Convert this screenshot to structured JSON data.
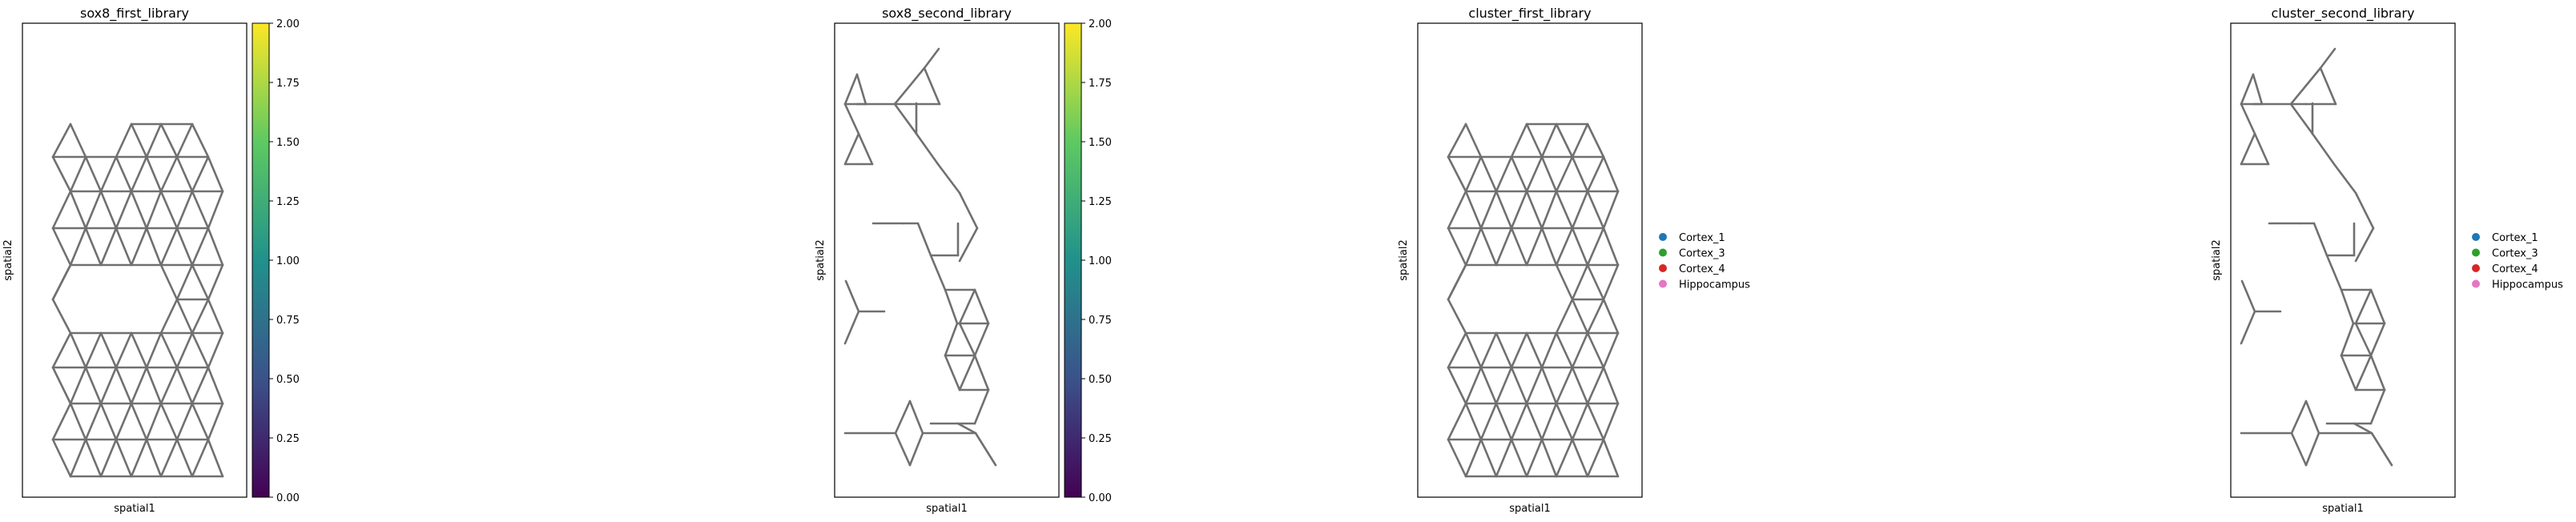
{
  "colorbar": {
    "cmap_stops": [
      "#440154",
      "#3b528b",
      "#21918c",
      "#5ec962",
      "#fde725"
    ],
    "range": [
      0.0,
      2.0
    ],
    "tick_labels": [
      "0.00",
      "0.25",
      "0.50",
      "0.75",
      "1.00",
      "1.25",
      "1.50",
      "1.75",
      "2.00"
    ]
  },
  "chart_data": [
    {
      "type": "scatter",
      "title": "sox8_first_library",
      "xlabel": "spatial1",
      "ylabel": "spatial2",
      "edge_color": "#707070",
      "colorbar": true,
      "legend": null,
      "graph": "full"
    },
    {
      "type": "scatter",
      "title": "sox8_second_library",
      "xlabel": "spatial1",
      "ylabel": "spatial2",
      "edge_color": "#707070",
      "colorbar": true,
      "legend": null,
      "graph": "sparse"
    },
    {
      "type": "scatter",
      "title": "cluster_first_library",
      "xlabel": "spatial1",
      "ylabel": "spatial2",
      "edge_color": "#707070",
      "colorbar": false,
      "legend": {
        "placement": "right",
        "items": [
          {
            "label": "Cortex_1",
            "color": "#1f77b4"
          },
          {
            "label": "Cortex_3",
            "color": "#2ca02c"
          },
          {
            "label": "Cortex_4",
            "color": "#d62728"
          },
          {
            "label": "Hippocampus",
            "color": "#e377c2"
          }
        ]
      },
      "graph": "full"
    },
    {
      "type": "scatter",
      "title": "cluster_second_library",
      "xlabel": "spatial1",
      "ylabel": "spatial2",
      "edge_color": "#707070",
      "colorbar": false,
      "legend": {
        "placement": "right",
        "items": [
          {
            "label": "Cortex_1",
            "color": "#1f77b4"
          },
          {
            "label": "Cortex_3",
            "color": "#2ca02c"
          },
          {
            "label": "Cortex_4",
            "color": "#d62728"
          },
          {
            "label": "Hippocampus",
            "color": "#e377c2"
          }
        ]
      },
      "graph": "sparse"
    }
  ]
}
